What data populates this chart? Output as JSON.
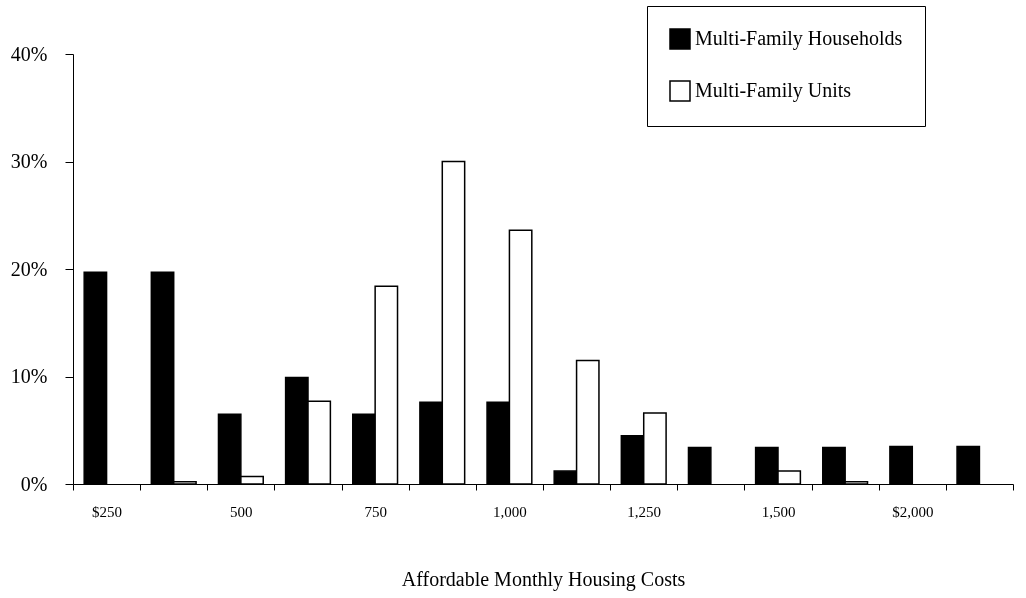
{
  "chart_data": {
    "type": "bar",
    "xlabel": "Affordable Monthly Housing Costs",
    "categories": [
      "$250",
      null,
      "500",
      null,
      "750",
      null,
      "1,000",
      null,
      "1,250",
      null,
      "1,500",
      null,
      "$2,000",
      null
    ],
    "series": [
      {
        "name": "Multi-Family Households",
        "color": "#000000",
        "values": [
          19.7,
          19.7,
          6.5,
          9.9,
          6.5,
          7.6,
          7.6,
          1.2,
          4.5,
          3.4,
          3.4,
          3.4,
          3.5,
          3.5
        ]
      },
      {
        "name": "Multi-Family Units",
        "color": "#ffffff",
        "values": [
          null,
          0.2,
          0.7,
          7.7,
          18.4,
          30,
          23.6,
          11.5,
          6.6,
          null,
          1.2,
          0.2,
          null,
          null
        ]
      }
    ],
    "ylim": [
      0,
      40
    ],
    "yticks": [
      {
        "value": 0,
        "label": "0%"
      },
      {
        "value": 10,
        "label": "10%"
      },
      {
        "value": 20,
        "label": "20%"
      },
      {
        "value": 30,
        "label": "30%"
      },
      {
        "value": 40,
        "label": "40%"
      }
    ],
    "grid": false,
    "legend": "top right"
  }
}
